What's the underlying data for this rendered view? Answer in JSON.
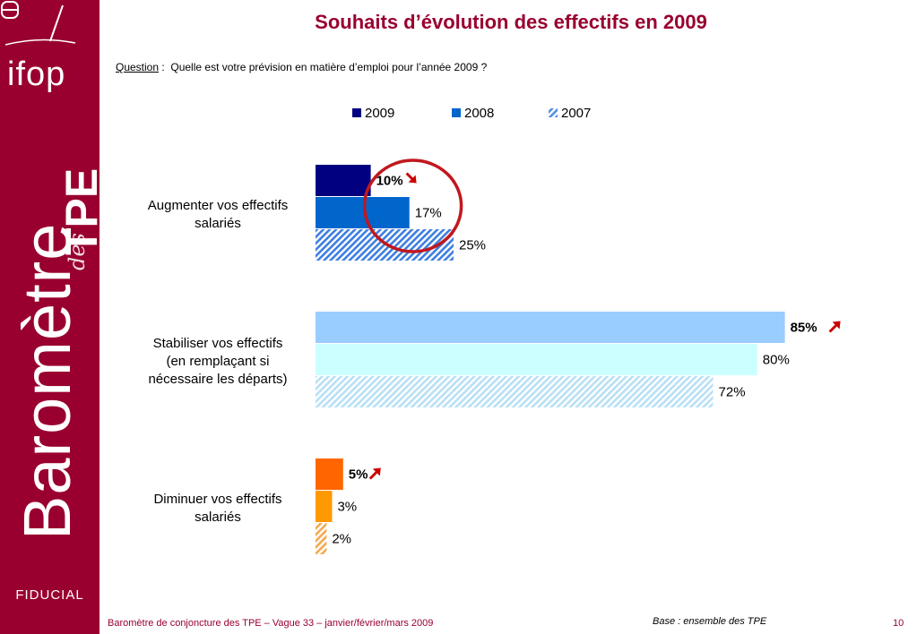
{
  "sidebar": {
    "logo_top": "ifop",
    "brand_word": "Baromètre",
    "brand_des": "des",
    "brand_tpe": "TPE",
    "logo_bottom": "FIDUCIAL",
    "background": "#99002f"
  },
  "title": "Souhaits d’évolution des effectifs en 2009",
  "question": {
    "label": "Question",
    "separator": " :  ",
    "text": "Quelle est votre prévision en matière d’emploi pour l’année 2009 ?"
  },
  "footer": "Baromètre de conjoncture des TPE – Vague 33 – janvier/février/mars 2009",
  "base": "Base : ensemble des TPE",
  "page_number": "10",
  "chart_data": {
    "type": "bar",
    "orientation": "horizontal",
    "unit": "%",
    "xlim": [
      0,
      100
    ],
    "categories": [
      "Augmenter vos effectifs salariés",
      "Stabiliser vos effectifs (en remplaçant si nécessaire les départs)",
      "Diminuer vos effectifs salariés"
    ],
    "category_lines": [
      [
        "Augmenter vos effectifs",
        "salariés"
      ],
      [
        "Stabiliser vos effectifs",
        "(en remplaçant si",
        "nécessaire les départs)"
      ],
      [
        "Diminuer vos effectifs",
        "salariés"
      ]
    ],
    "series": [
      {
        "name": "2009",
        "values": [
          10,
          85,
          5
        ],
        "labels": [
          "10%",
          "85%",
          "5%"
        ]
      },
      {
        "name": "2008",
        "values": [
          17,
          80,
          3
        ],
        "labels": [
          "17%",
          "80%",
          "3%"
        ]
      },
      {
        "name": "2007",
        "values": [
          25,
          72,
          2
        ],
        "labels": [
          "25%",
          "72%",
          "2%"
        ]
      }
    ],
    "legend": [
      "2009",
      "2008",
      "2007"
    ],
    "legend_position": "top",
    "grid": false,
    "colors": {
      "legend": [
        "#000080",
        "#0066cc",
        "#4f8fe0"
      ],
      "categories": [
        [
          "#000080",
          "#0066cc",
          "#3d7ee0"
        ],
        [
          "#99ccff",
          "#ccffff",
          "#b8e0f5"
        ],
        [
          "#ff6600",
          "#ff9900",
          "#f5a84f"
        ]
      ]
    },
    "trend_arrows": [
      {
        "category": 0,
        "series": "2009",
        "direction": "down",
        "color": "#cc0000"
      },
      {
        "category": 1,
        "series": "2009",
        "direction": "up",
        "color": "#cc0000"
      },
      {
        "category": 2,
        "series": "2009",
        "direction": "up",
        "color": "#cc0000"
      }
    ],
    "highlight": {
      "category": 0,
      "series": "2009",
      "shape": "circle",
      "color": "#c0181e"
    }
  }
}
